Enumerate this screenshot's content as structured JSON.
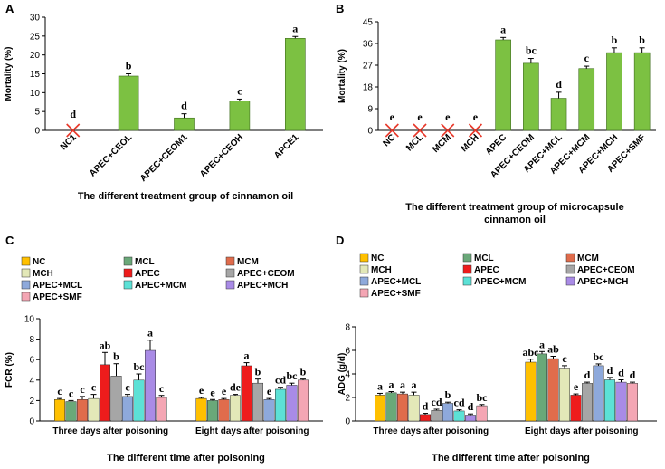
{
  "panels": {
    "A": "A",
    "B": "B",
    "C": "C",
    "D": "D"
  },
  "colors": {
    "green": "#7CC142",
    "NC": "#FFC000",
    "MCL": "#6AA879",
    "MCM": "#E06C4C",
    "MCH": "#E3E8B8",
    "APEC": "#EE1C1C",
    "APEC+CEOM": "#A6A6A6",
    "APEC+MCL": "#8EA9DB",
    "APEC+MCM": "#5CE1D6",
    "APEC+MCH": "#A98BE6",
    "APEC+SMF": "#F4A6B4"
  },
  "chart_data": [
    {
      "id": "A",
      "type": "bar",
      "title": "",
      "xlabel": "The different treatment group of cinnamon oil",
      "ylabel": "Mortality (%)",
      "ylim": [
        0,
        30
      ],
      "yticks": [
        "0",
        "5",
        "10",
        "15",
        "20",
        "25",
        "30"
      ],
      "categories": [
        "NC1",
        "APEC+CEOL",
        "APEC+CEOM1",
        "APEC+CEOH",
        "APCE1"
      ],
      "values": [
        0,
        14.4,
        3.3,
        7.8,
        24.4
      ],
      "errors": [
        0,
        0.6,
        1.1,
        0.5,
        0.5
      ],
      "letters": [
        "d",
        "b",
        "d",
        "c",
        "a"
      ],
      "zero_markers": [
        true,
        false,
        false,
        false,
        false
      ]
    },
    {
      "id": "B",
      "type": "bar",
      "title": "",
      "xlabel": "The different treatment group of microcapsule cinnamon oil",
      "xlabel_lines": [
        "The different treatment group of microcapsule",
        "cinnamon oil"
      ],
      "ylabel": "Mortality (%)",
      "ylim": [
        0,
        45
      ],
      "yticks": [
        "0",
        "9",
        "18",
        "27",
        "36",
        "45"
      ],
      "categories": [
        "NC",
        "MCL",
        "MCM",
        "MCH",
        "APEC",
        "APEC+CEOM",
        "APEC+MCL",
        "APEC+MCM",
        "APEC+MCH",
        "APEC+SMF"
      ],
      "values": [
        0,
        0,
        0,
        0,
        37.5,
        27.8,
        13.3,
        25.6,
        32.2,
        32.2
      ],
      "errors": [
        0,
        0,
        0,
        0,
        1.0,
        2.0,
        2.5,
        1.0,
        2.0,
        2.0
      ],
      "letters": [
        "e",
        "e",
        "e",
        "e",
        "a",
        "bc",
        "d",
        "c",
        "b",
        "b"
      ],
      "zero_markers": [
        true,
        true,
        true,
        true,
        false,
        false,
        false,
        false,
        false,
        false
      ]
    },
    {
      "id": "C",
      "type": "bar",
      "title": "",
      "xlabel": "The different time after poisoning",
      "ylabel": "FCR (%)",
      "ylim": [
        0,
        10
      ],
      "yticks": [
        "0",
        "2",
        "4",
        "6",
        "8",
        "10"
      ],
      "groups": [
        "Three days after poisoning",
        "Eight days after poisoning"
      ],
      "series": [
        {
          "name": "NC",
          "values": [
            2.1,
            2.2
          ],
          "errors": [
            0.1,
            0.1
          ],
          "letters": [
            "c",
            "e"
          ]
        },
        {
          "name": "MCL",
          "values": [
            1.9,
            2.0
          ],
          "errors": [
            0.1,
            0.1
          ],
          "letters": [
            "c",
            "e"
          ]
        },
        {
          "name": "MCM",
          "values": [
            2.1,
            2.1
          ],
          "errors": [
            0.3,
            0.1
          ],
          "letters": [
            "c",
            "e"
          ]
        },
        {
          "name": "MCH",
          "values": [
            2.2,
            2.5
          ],
          "errors": [
            0.4,
            0.1
          ],
          "letters": [
            "c",
            "de"
          ]
        },
        {
          "name": "APEC",
          "values": [
            5.5,
            5.4
          ],
          "errors": [
            1.2,
            0.3
          ],
          "letters": [
            "ab",
            "a"
          ]
        },
        {
          "name": "APEC+CEOM",
          "values": [
            4.4,
            3.7
          ],
          "errors": [
            1.2,
            0.4
          ],
          "letters": [
            "b",
            "b"
          ]
        },
        {
          "name": "APEC+MCL",
          "values": [
            2.4,
            2.1
          ],
          "errors": [
            0.2,
            0.1
          ],
          "letters": [
            "c",
            "e"
          ]
        },
        {
          "name": "APEC+MCM",
          "values": [
            4.0,
            3.1
          ],
          "errors": [
            0.6,
            0.2
          ],
          "letters": [
            "bc",
            "cd"
          ]
        },
        {
          "name": "APEC+MCH",
          "values": [
            6.9,
            3.5
          ],
          "errors": [
            1.0,
            0.2
          ],
          "letters": [
            "a",
            "bc"
          ]
        },
        {
          "name": "APEC+SMF",
          "values": [
            2.3,
            4.0
          ],
          "errors": [
            0.2,
            0.1
          ],
          "letters": [
            "c",
            "b"
          ]
        }
      ]
    },
    {
      "id": "D",
      "type": "bar",
      "title": "",
      "xlabel": "The different time after poisoning",
      "ylabel": "ADG (g/d)",
      "ylim": [
        0,
        8
      ],
      "yticks": [
        "0",
        "2",
        "4",
        "6",
        "8"
      ],
      "groups": [
        "Three days after poisoning",
        "Eight days after poisoning"
      ],
      "series": [
        {
          "name": "NC",
          "values": [
            2.2,
            5.0
          ],
          "errors": [
            0.15,
            0.25
          ],
          "letters": [
            "a",
            "abc"
          ]
        },
        {
          "name": "MCL",
          "values": [
            2.4,
            5.7
          ],
          "errors": [
            0.1,
            0.2
          ],
          "letters": [
            "a",
            "a"
          ]
        },
        {
          "name": "MCM",
          "values": [
            2.3,
            5.3
          ],
          "errors": [
            0.15,
            0.2
          ],
          "letters": [
            "a",
            "ab"
          ]
        },
        {
          "name": "MCH",
          "values": [
            2.2,
            4.5
          ],
          "errors": [
            0.25,
            0.2
          ],
          "letters": [
            "a",
            "c"
          ]
        },
        {
          "name": "APEC",
          "values": [
            0.55,
            2.2
          ],
          "errors": [
            0.1,
            0.1
          ],
          "letters": [
            "d",
            "e"
          ]
        },
        {
          "name": "APEC+CEOM",
          "values": [
            0.9,
            3.2
          ],
          "errors": [
            0.1,
            0.1
          ],
          "letters": [
            "cd",
            "d"
          ]
        },
        {
          "name": "APEC+MCL",
          "values": [
            1.5,
            4.7
          ],
          "errors": [
            0.1,
            0.15
          ],
          "letters": [
            "b",
            "bc"
          ]
        },
        {
          "name": "APEC+MCM",
          "values": [
            0.85,
            3.5
          ],
          "errors": [
            0.1,
            0.2
          ],
          "letters": [
            "cd",
            "d"
          ]
        },
        {
          "name": "APEC+MCH",
          "values": [
            0.5,
            3.3
          ],
          "errors": [
            0.1,
            0.2
          ],
          "letters": [
            "d",
            "d"
          ]
        },
        {
          "name": "APEC+SMF",
          "values": [
            1.3,
            3.2
          ],
          "errors": [
            0.1,
            0.1
          ],
          "letters": [
            "bc",
            "d"
          ]
        }
      ]
    }
  ]
}
